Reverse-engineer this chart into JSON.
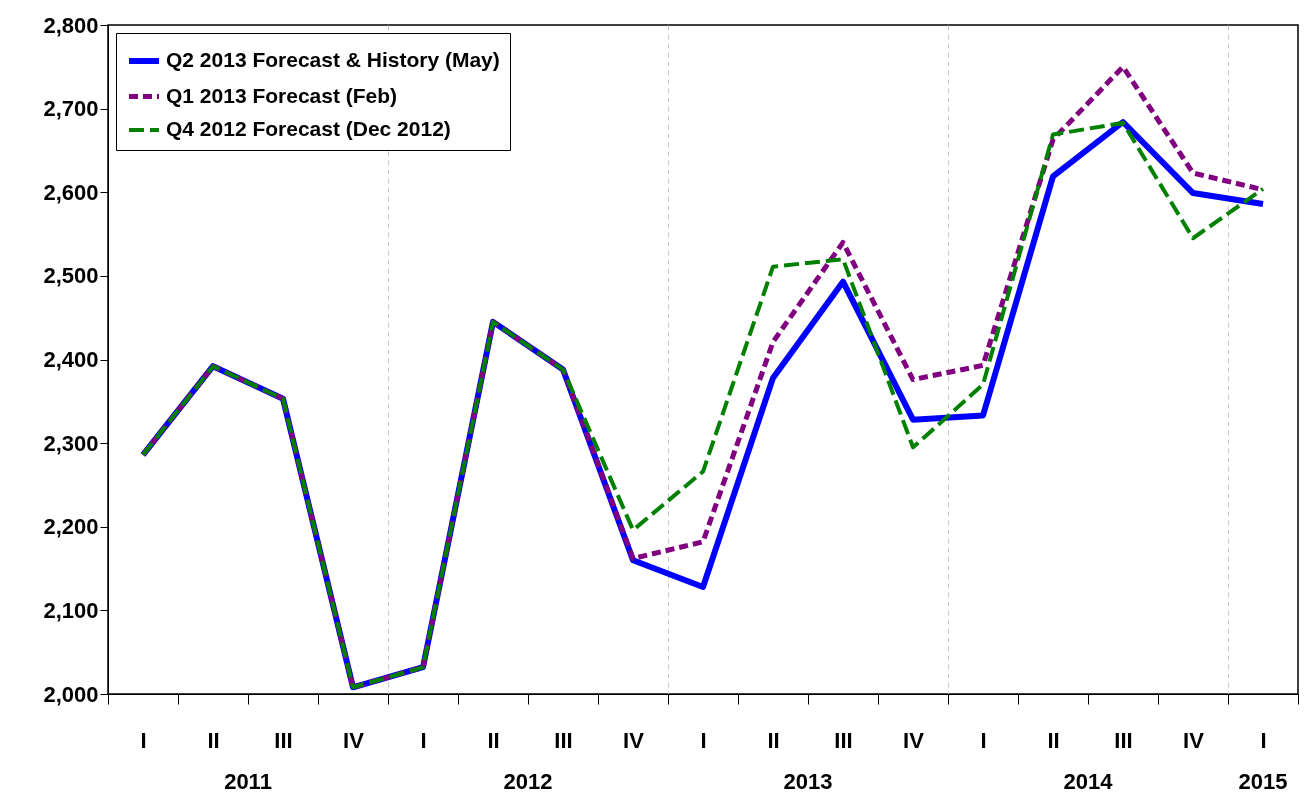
{
  "chart_data": {
    "type": "line",
    "categories": [
      "I",
      "II",
      "III",
      "IV",
      "I",
      "II",
      "III",
      "IV",
      "I",
      "II",
      "III",
      "IV",
      "I",
      "II",
      "III",
      "IV",
      "I"
    ],
    "annotations": [
      "2011",
      "2012",
      "2013",
      "2014",
      "2015"
    ],
    "series": [
      {
        "name": "Q2 2013 Forecast & History (May)",
        "color": "#0000ff",
        "line_style": "solid",
        "values": [
          2286,
          2392,
          2353,
          2008,
          2032,
          2445,
          2388,
          2160,
          2128,
          2378,
          2493,
          2328,
          2333,
          2619,
          2684,
          2599,
          2586
        ]
      },
      {
        "name": "Q1 2013 Forecast (Feb)",
        "color": "#800080",
        "line_style": "dashed",
        "values": [
          2286,
          2392,
          2353,
          2008,
          2032,
          2445,
          2388,
          2162,
          2182,
          2421,
          2540,
          2376,
          2393,
          2663,
          2750,
          2623,
          2603
        ]
      },
      {
        "name": "Q4 2012 Forecast (Dec 2012)",
        "color": "#008000",
        "line_style": "dashed",
        "values": [
          2286,
          2392,
          2353,
          2008,
          2032,
          2445,
          2388,
          2196,
          2266,
          2511,
          2520,
          2295,
          2370,
          2669,
          2683,
          2545,
          2604
        ]
      }
    ],
    "ylim": [
      2000,
      2800
    ],
    "yticks": [
      {
        "value": 2000,
        "label": "2,000"
      },
      {
        "value": 2100,
        "label": "2,100"
      },
      {
        "value": 2200,
        "label": "2,200"
      },
      {
        "value": 2300,
        "label": "2,300"
      },
      {
        "value": 2400,
        "label": "2,400"
      },
      {
        "value": 2500,
        "label": "2,500"
      },
      {
        "value": 2600,
        "label": "2,600"
      },
      {
        "value": 2700,
        "label": "2,700"
      },
      {
        "value": 2800,
        "label": "2,800"
      }
    ],
    "grid": "x",
    "legend": "top left"
  }
}
